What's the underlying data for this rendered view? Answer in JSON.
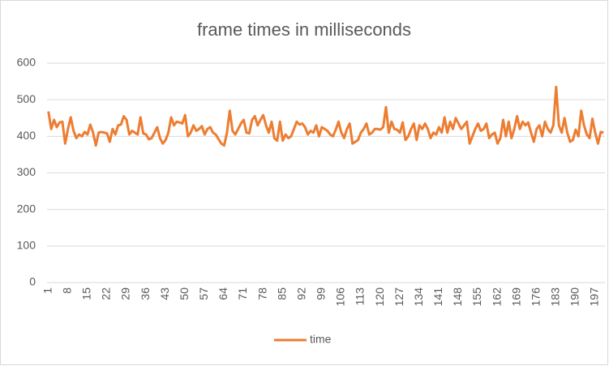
{
  "chart_data": {
    "type": "line",
    "title": "frame times in milliseconds",
    "categories": [
      1,
      null,
      null,
      null,
      null,
      null,
      null,
      8,
      null,
      null,
      null,
      null,
      null,
      null,
      15,
      null,
      null,
      null,
      null,
      null,
      null,
      22,
      null,
      null,
      null,
      null,
      null,
      null,
      29,
      null,
      null,
      null,
      null,
      null,
      null,
      36,
      null,
      null,
      null,
      null,
      null,
      null,
      43,
      null,
      null,
      null,
      null,
      null,
      null,
      50,
      null,
      null,
      null,
      null,
      null,
      null,
      57,
      null,
      null,
      null,
      null,
      null,
      null,
      64,
      null,
      null,
      null,
      null,
      null,
      null,
      71,
      null,
      null,
      null,
      null,
      null,
      null,
      78,
      null,
      null,
      null,
      null,
      null,
      null,
      85,
      null,
      null,
      null,
      null,
      null,
      null,
      92,
      null,
      null,
      null,
      null,
      null,
      null,
      99,
      null,
      null,
      null,
      null,
      null,
      null,
      106,
      null,
      null,
      null,
      null,
      null,
      null,
      113,
      null,
      null,
      null,
      null,
      null,
      null,
      120,
      null,
      null,
      null,
      null,
      null,
      null,
      127,
      null,
      null,
      null,
      null,
      null,
      null,
      134,
      null,
      null,
      null,
      null,
      null,
      null,
      141,
      null,
      null,
      null,
      null,
      null,
      null,
      148,
      null,
      null,
      null,
      null,
      null,
      null,
      155,
      null,
      null,
      null,
      null,
      null,
      null,
      162,
      null,
      null,
      null,
      null,
      null,
      null,
      169,
      null,
      null,
      null,
      null,
      null,
      null,
      176,
      null,
      null,
      null,
      null,
      null,
      null,
      183,
      null,
      null,
      null,
      null,
      null,
      null,
      190,
      null,
      null,
      null,
      null,
      null,
      null,
      197,
      null,
      null,
      null
    ],
    "series": [
      {
        "name": "time",
        "color": "#ed7d31",
        "values": [
          468,
          420,
          445,
          425,
          438,
          440,
          380,
          420,
          452,
          415,
          395,
          405,
          400,
          412,
          405,
          432,
          410,
          375,
          410,
          412,
          410,
          408,
          385,
          420,
          405,
          430,
          432,
          455,
          445,
          405,
          415,
          410,
          405,
          452,
          408,
          405,
          392,
          395,
          410,
          425,
          395,
          380,
          390,
          410,
          452,
          430,
          440,
          438,
          435,
          458,
          400,
          410,
          430,
          415,
          420,
          428,
          405,
          420,
          425,
          410,
          405,
          392,
          380,
          375,
          410,
          470,
          415,
          405,
          420,
          435,
          445,
          410,
          408,
          445,
          455,
          430,
          445,
          458,
          430,
          410,
          440,
          395,
          388,
          440,
          388,
          405,
          395,
          400,
          420,
          440,
          432,
          435,
          425,
          405,
          415,
          410,
          430,
          400,
          425,
          420,
          415,
          405,
          400,
          418,
          440,
          410,
          395,
          420,
          435,
          380,
          385,
          390,
          410,
          420,
          435,
          405,
          410,
          420,
          420,
          418,
          425,
          480,
          410,
          440,
          420,
          418,
          410,
          438,
          390,
          400,
          420,
          435,
          390,
          430,
          420,
          435,
          420,
          395,
          410,
          405,
          425,
          410,
          452,
          410,
          440,
          420,
          450,
          435,
          420,
          430,
          440,
          380,
          400,
          420,
          435,
          415,
          420,
          435,
          395,
          405,
          410,
          380,
          395,
          445,
          400,
          440,
          395,
          420,
          455,
          420,
          440,
          430,
          438,
          410,
          385,
          420,
          430,
          400,
          440,
          420,
          410,
          430,
          535,
          430,
          410,
          450,
          410,
          385,
          390,
          418,
          400,
          470,
          430,
          405,
          395,
          448,
          410,
          380,
          412,
          410
        ]
      }
    ],
    "ylim": [
      0,
      600
    ],
    "yticks": [
      0,
      100,
      200,
      300,
      400,
      500,
      600
    ],
    "grid": true,
    "legend": "bottom"
  }
}
